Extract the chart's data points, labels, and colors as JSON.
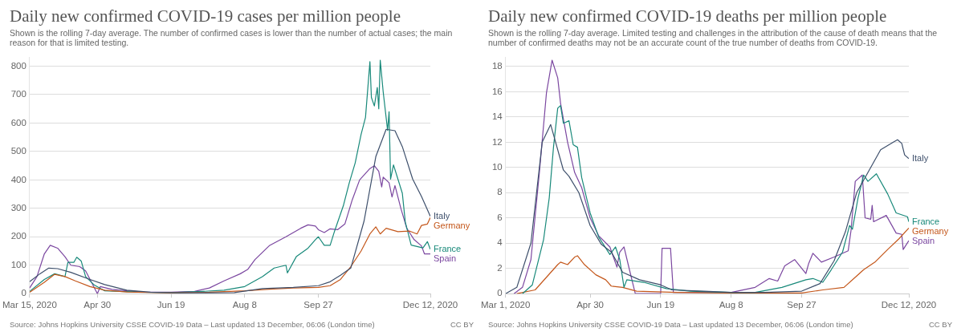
{
  "chart_data": [
    {
      "type": "line",
      "title": "Daily new confirmed COVID-19 cases per million people",
      "subtitle": "Shown is the rolling 7-day average. The number of confirmed cases is lower than the number of actual cases; the main reason for that is limited testing.",
      "annotations": [
        "Source: Johns Hopkins University CSSE COVID-19 Data – Last updated 13 December, 06:06 (London time)",
        "CC BY"
      ],
      "xlim": [
        "2020-03-15",
        "2020-12-12"
      ],
      "xticks": [
        {
          "value": "2020-03-15",
          "label": "Mar 15, 2020"
        },
        {
          "value": "2020-04-30",
          "label": "Apr 30"
        },
        {
          "value": "2020-06-19",
          "label": "Jun 19"
        },
        {
          "value": "2020-08-08",
          "label": "Aug 8"
        },
        {
          "value": "2020-09-27",
          "label": "Sep 27"
        },
        {
          "value": "2020-12-12",
          "label": "Dec 12, 2020"
        }
      ],
      "ylim": [
        0,
        830
      ],
      "yticks": [
        0,
        100,
        200,
        300,
        400,
        500,
        600,
        700,
        800
      ],
      "grid": "y",
      "legend": "right",
      "line_style": "solid",
      "series": [
        {
          "name": "Italy",
          "color": "#3d4f6b",
          "x": [
            "2020-03-15",
            "2020-03-22",
            "2020-03-28",
            "2020-04-03",
            "2020-04-12",
            "2020-04-25",
            "2020-05-05",
            "2020-05-20",
            "2020-06-05",
            "2020-06-25",
            "2020-07-15",
            "2020-08-01",
            "2020-08-20",
            "2020-09-10",
            "2020-09-27",
            "2020-10-05",
            "2020-10-12",
            "2020-10-19",
            "2020-10-28",
            "2020-11-05",
            "2020-11-12",
            "2020-11-18",
            "2020-11-23",
            "2020-11-30",
            "2020-12-06",
            "2020-12-12"
          ],
          "values": [
            42,
            70,
            90,
            88,
            75,
            50,
            32,
            12,
            5,
            3,
            3,
            4,
            18,
            22,
            28,
            42,
            65,
            90,
            255,
            482,
            578,
            573,
            517,
            403,
            342,
            272
          ]
        },
        {
          "name": "Germany",
          "color": "#c4571b",
          "x": [
            "2020-03-15",
            "2020-03-25",
            "2020-04-01",
            "2020-04-08",
            "2020-04-15",
            "2020-04-25",
            "2020-05-05",
            "2020-05-20",
            "2020-06-19",
            "2020-07-15",
            "2020-08-08",
            "2020-08-25",
            "2020-09-10",
            "2020-09-27",
            "2020-10-05",
            "2020-10-12",
            "2020-10-19",
            "2020-10-26",
            "2020-11-01",
            "2020-11-05",
            "2020-11-08",
            "2020-11-12",
            "2020-11-20",
            "2020-11-28",
            "2020-12-03",
            "2020-12-06",
            "2020-12-10",
            "2020-12-12"
          ],
          "values": [
            5,
            40,
            68,
            60,
            45,
            25,
            12,
            6,
            3,
            5,
            10,
            16,
            20,
            22,
            28,
            50,
            95,
            150,
            210,
            235,
            210,
            230,
            218,
            220,
            210,
            240,
            245,
            268
          ]
        },
        {
          "name": "France",
          "color": "#18897a",
          "x": [
            "2020-03-15",
            "2020-03-25",
            "2020-04-01",
            "2020-04-08",
            "2020-04-10",
            "2020-04-14",
            "2020-04-16",
            "2020-04-19",
            "2020-04-22",
            "2020-04-28",
            "2020-05-05",
            "2020-05-15",
            "2020-06-01",
            "2020-06-20",
            "2020-07-10",
            "2020-07-25",
            "2020-08-08",
            "2020-08-20",
            "2020-08-28",
            "2020-09-05",
            "2020-09-06",
            "2020-09-12",
            "2020-09-20",
            "2020-09-25",
            "2020-09-27",
            "2020-10-01",
            "2020-10-05",
            "2020-10-08",
            "2020-10-14",
            "2020-10-18",
            "2020-10-22",
            "2020-10-26",
            "2020-10-29",
            "2020-11-01",
            "2020-11-02",
            "2020-11-04",
            "2020-11-06",
            "2020-11-07",
            "2020-11-08",
            "2020-11-10",
            "2020-11-13",
            "2020-11-14",
            "2020-11-15",
            "2020-11-17",
            "2020-11-23",
            "2020-11-25",
            "2020-11-29",
            "2020-12-07",
            "2020-12-10",
            "2020-12-12"
          ],
          "values": [
            8,
            50,
            70,
            60,
            110,
            110,
            128,
            115,
            60,
            30,
            10,
            8,
            5,
            4,
            8,
            12,
            25,
            60,
            90,
            100,
            73,
            130,
            160,
            190,
            200,
            170,
            170,
            220,
            310,
            390,
            460,
            560,
            620,
            816,
            690,
            660,
            725,
            650,
            821,
            710,
            574,
            640,
            403,
            453,
            353,
            252,
            171,
            161,
            183,
            156
          ]
        },
        {
          "name": "Spain",
          "color": "#7b47a0",
          "x": [
            "2020-03-15",
            "2020-03-20",
            "2020-03-25",
            "2020-03-29",
            "2020-04-03",
            "2020-04-08",
            "2020-04-12",
            "2020-04-18",
            "2020-04-22",
            "2020-04-27",
            "2020-04-30",
            "2020-05-02",
            "2020-05-10",
            "2020-05-20",
            "2020-06-01",
            "2020-06-19",
            "2020-07-05",
            "2020-07-15",
            "2020-07-25",
            "2020-08-05",
            "2020-08-10",
            "2020-08-15",
            "2020-08-25",
            "2020-09-05",
            "2020-09-15",
            "2020-09-20",
            "2020-09-25",
            "2020-09-27",
            "2020-10-01",
            "2020-10-05",
            "2020-10-10",
            "2020-10-15",
            "2020-10-20",
            "2020-10-25",
            "2020-11-01",
            "2020-11-04",
            "2020-11-07",
            "2020-11-09",
            "2020-11-10",
            "2020-11-14",
            "2020-11-16",
            "2020-11-18",
            "2020-11-22",
            "2020-11-26",
            "2020-12-01",
            "2020-12-06",
            "2020-12-08",
            "2020-12-12"
          ],
          "values": [
            20,
            60,
            140,
            170,
            160,
            130,
            100,
            95,
            80,
            30,
            0,
            25,
            15,
            10,
            5,
            5,
            8,
            20,
            45,
            70,
            85,
            120,
            170,
            200,
            230,
            242,
            238,
            225,
            215,
            228,
            225,
            245,
            330,
            400,
            440,
            450,
            430,
            375,
            410,
            390,
            340,
            380,
            300,
            230,
            190,
            168,
            140,
            140
          ]
        }
      ]
    },
    {
      "type": "line",
      "title": "Daily new confirmed COVID-19 deaths per million people",
      "subtitle": "Shown is the rolling 7-day average. Limited testing and challenges in the attribution of the cause of death means that the number of confirmed deaths may not be an accurate count of the true number of deaths from COVID-19.",
      "annotations": [
        "Source: Johns Hopkins University CSSE COVID-19 Data – Last updated 13 December, 06:06 (London time)",
        "CC BY"
      ],
      "xlim": [
        "2020-03-01",
        "2020-12-12"
      ],
      "xticks": [
        {
          "value": "2020-03-01",
          "label": "Mar 1, 2020"
        },
        {
          "value": "2020-04-30",
          "label": "Apr 30"
        },
        {
          "value": "2020-06-19",
          "label": "Jun 19"
        },
        {
          "value": "2020-08-08",
          "label": "Aug 8"
        },
        {
          "value": "2020-09-27",
          "label": "Sep 27"
        },
        {
          "value": "2020-12-12",
          "label": "Dec 12, 2020"
        }
      ],
      "ylim": [
        0,
        18.7
      ],
      "yticks": [
        0,
        2,
        4,
        6,
        8,
        10,
        12,
        14,
        16,
        18
      ],
      "grid": "y",
      "legend": "right",
      "line_style": "solid",
      "series": [
        {
          "name": "Italy",
          "color": "#3d4f6b",
          "x": [
            "2020-03-01",
            "2020-03-09",
            "2020-03-19",
            "2020-03-27",
            "2020-04-02",
            "2020-04-05",
            "2020-04-11",
            "2020-04-15",
            "2020-04-22",
            "2020-04-30",
            "2020-05-08",
            "2020-05-15",
            "2020-05-23",
            "2020-06-04",
            "2020-06-19",
            "2020-06-27",
            "2020-07-20",
            "2020-08-08",
            "2020-09-01",
            "2020-09-27",
            "2020-10-10",
            "2020-10-20",
            "2020-10-28",
            "2020-11-05",
            "2020-11-15",
            "2020-11-22",
            "2020-12-01",
            "2020-12-04",
            "2020-12-07",
            "2020-12-09",
            "2020-12-12"
          ],
          "values": [
            0,
            0.5,
            4,
            12,
            13.4,
            12.2,
            9.8,
            9.3,
            8,
            5.4,
            3.9,
            3.3,
            1.7,
            1.1,
            0.7,
            0.3,
            0.2,
            0.1,
            0.1,
            0.2,
            0.8,
            2.6,
            4.9,
            8,
            10,
            11.4,
            12,
            12.2,
            11.9,
            11,
            10.7
          ]
        },
        {
          "name": "France",
          "color": "#18897a",
          "x": [
            "2020-03-13",
            "2020-03-20",
            "2020-03-28",
            "2020-04-01",
            "2020-04-04",
            "2020-04-07",
            "2020-04-09",
            "2020-04-11",
            "2020-04-15",
            "2020-04-18",
            "2020-04-21",
            "2020-04-24",
            "2020-04-30",
            "2020-05-06",
            "2020-05-14",
            "2020-05-18",
            "2020-05-21",
            "2020-05-24",
            "2020-05-26",
            "2020-06-07",
            "2020-06-23",
            "2020-07-10",
            "2020-08-08",
            "2020-08-25",
            "2020-09-13",
            "2020-09-30",
            "2020-10-05",
            "2020-10-12",
            "2020-10-18",
            "2020-10-26",
            "2020-10-31",
            "2020-11-02",
            "2020-11-06",
            "2020-11-10",
            "2020-11-13",
            "2020-11-19",
            "2020-11-27",
            "2020-12-03",
            "2020-12-11",
            "2020-12-12"
          ],
          "values": [
            0,
            0.7,
            4.3,
            7.6,
            11.6,
            14.7,
            14.9,
            13.5,
            13.7,
            11.8,
            11.6,
            9.2,
            6.4,
            4.5,
            3.1,
            3.7,
            2.7,
            0.5,
            1.1,
            0.9,
            0.4,
            0.2,
            0.1,
            0.1,
            0.5,
            1.1,
            1.2,
            0.9,
            1.9,
            3.3,
            5.4,
            5.1,
            7.6,
            9.4,
            8.9,
            9.5,
            7.9,
            6.4,
            6.1,
            5.7
          ]
        },
        {
          "name": "Germany",
          "color": "#c4571b",
          "x": [
            "2020-03-09",
            "2020-03-22",
            "2020-03-30",
            "2020-04-07",
            "2020-04-09",
            "2020-04-14",
            "2020-04-19",
            "2020-04-21",
            "2020-04-26",
            "2020-05-04",
            "2020-05-11",
            "2020-05-15",
            "2020-05-23",
            "2020-06-02",
            "2020-07-01",
            "2020-08-08",
            "2020-09-27",
            "2020-10-12",
            "2020-10-27",
            "2020-11-04",
            "2020-11-10",
            "2020-11-18",
            "2020-11-27",
            "2020-12-05",
            "2020-12-12"
          ],
          "values": [
            0,
            0.3,
            1.3,
            2.3,
            2.5,
            2.3,
            2.9,
            3.0,
            2.3,
            1.5,
            1.1,
            0.6,
            0.5,
            0.2,
            0.1,
            0.05,
            0.05,
            0.3,
            0.5,
            1.3,
            1.9,
            2.5,
            3.5,
            4.35,
            5.2
          ]
        },
        {
          "name": "Spain",
          "color": "#7b47a0",
          "x": [
            "2020-03-07",
            "2020-03-13",
            "2020-03-19",
            "2020-03-25",
            "2020-03-30",
            "2020-04-03",
            "2020-04-07",
            "2020-04-09",
            "2020-04-14",
            "2020-04-19",
            "2020-04-24",
            "2020-04-30",
            "2020-05-06",
            "2020-05-14",
            "2020-05-19",
            "2020-05-21",
            "2020-05-24",
            "2020-05-27",
            "2020-06-01",
            "2020-06-19",
            "2020-06-20",
            "2020-06-26",
            "2020-06-28",
            "2020-07-20",
            "2020-08-08",
            "2020-08-25",
            "2020-09-04",
            "2020-09-10",
            "2020-09-15",
            "2020-09-22",
            "2020-09-30",
            "2020-10-02",
            "2020-10-05",
            "2020-10-11",
            "2020-10-20",
            "2020-10-30",
            "2020-11-01",
            "2020-11-04",
            "2020-11-09",
            "2020-11-11",
            "2020-11-15",
            "2020-11-16",
            "2020-11-17",
            "2020-11-26",
            "2020-12-03",
            "2020-12-07",
            "2020-12-08",
            "2020-12-12"
          ],
          "values": [
            0,
            0.5,
            2.7,
            9.6,
            15.9,
            18.5,
            17.1,
            15.1,
            12,
            9.6,
            8.4,
            6,
            4.6,
            3.7,
            2.1,
            3.3,
            3.7,
            2.3,
            0,
            0,
            3.6,
            3.6,
            0.1,
            0.1,
            0.1,
            0.5,
            1.2,
            1.0,
            2.2,
            2.7,
            1.6,
            2.4,
            3.2,
            2.5,
            2.9,
            3.4,
            5,
            8.9,
            9.4,
            6.0,
            5.9,
            7.0,
            5.7,
            6.2,
            4.8,
            4.7,
            3.5,
            4.2
          ]
        }
      ]
    }
  ]
}
